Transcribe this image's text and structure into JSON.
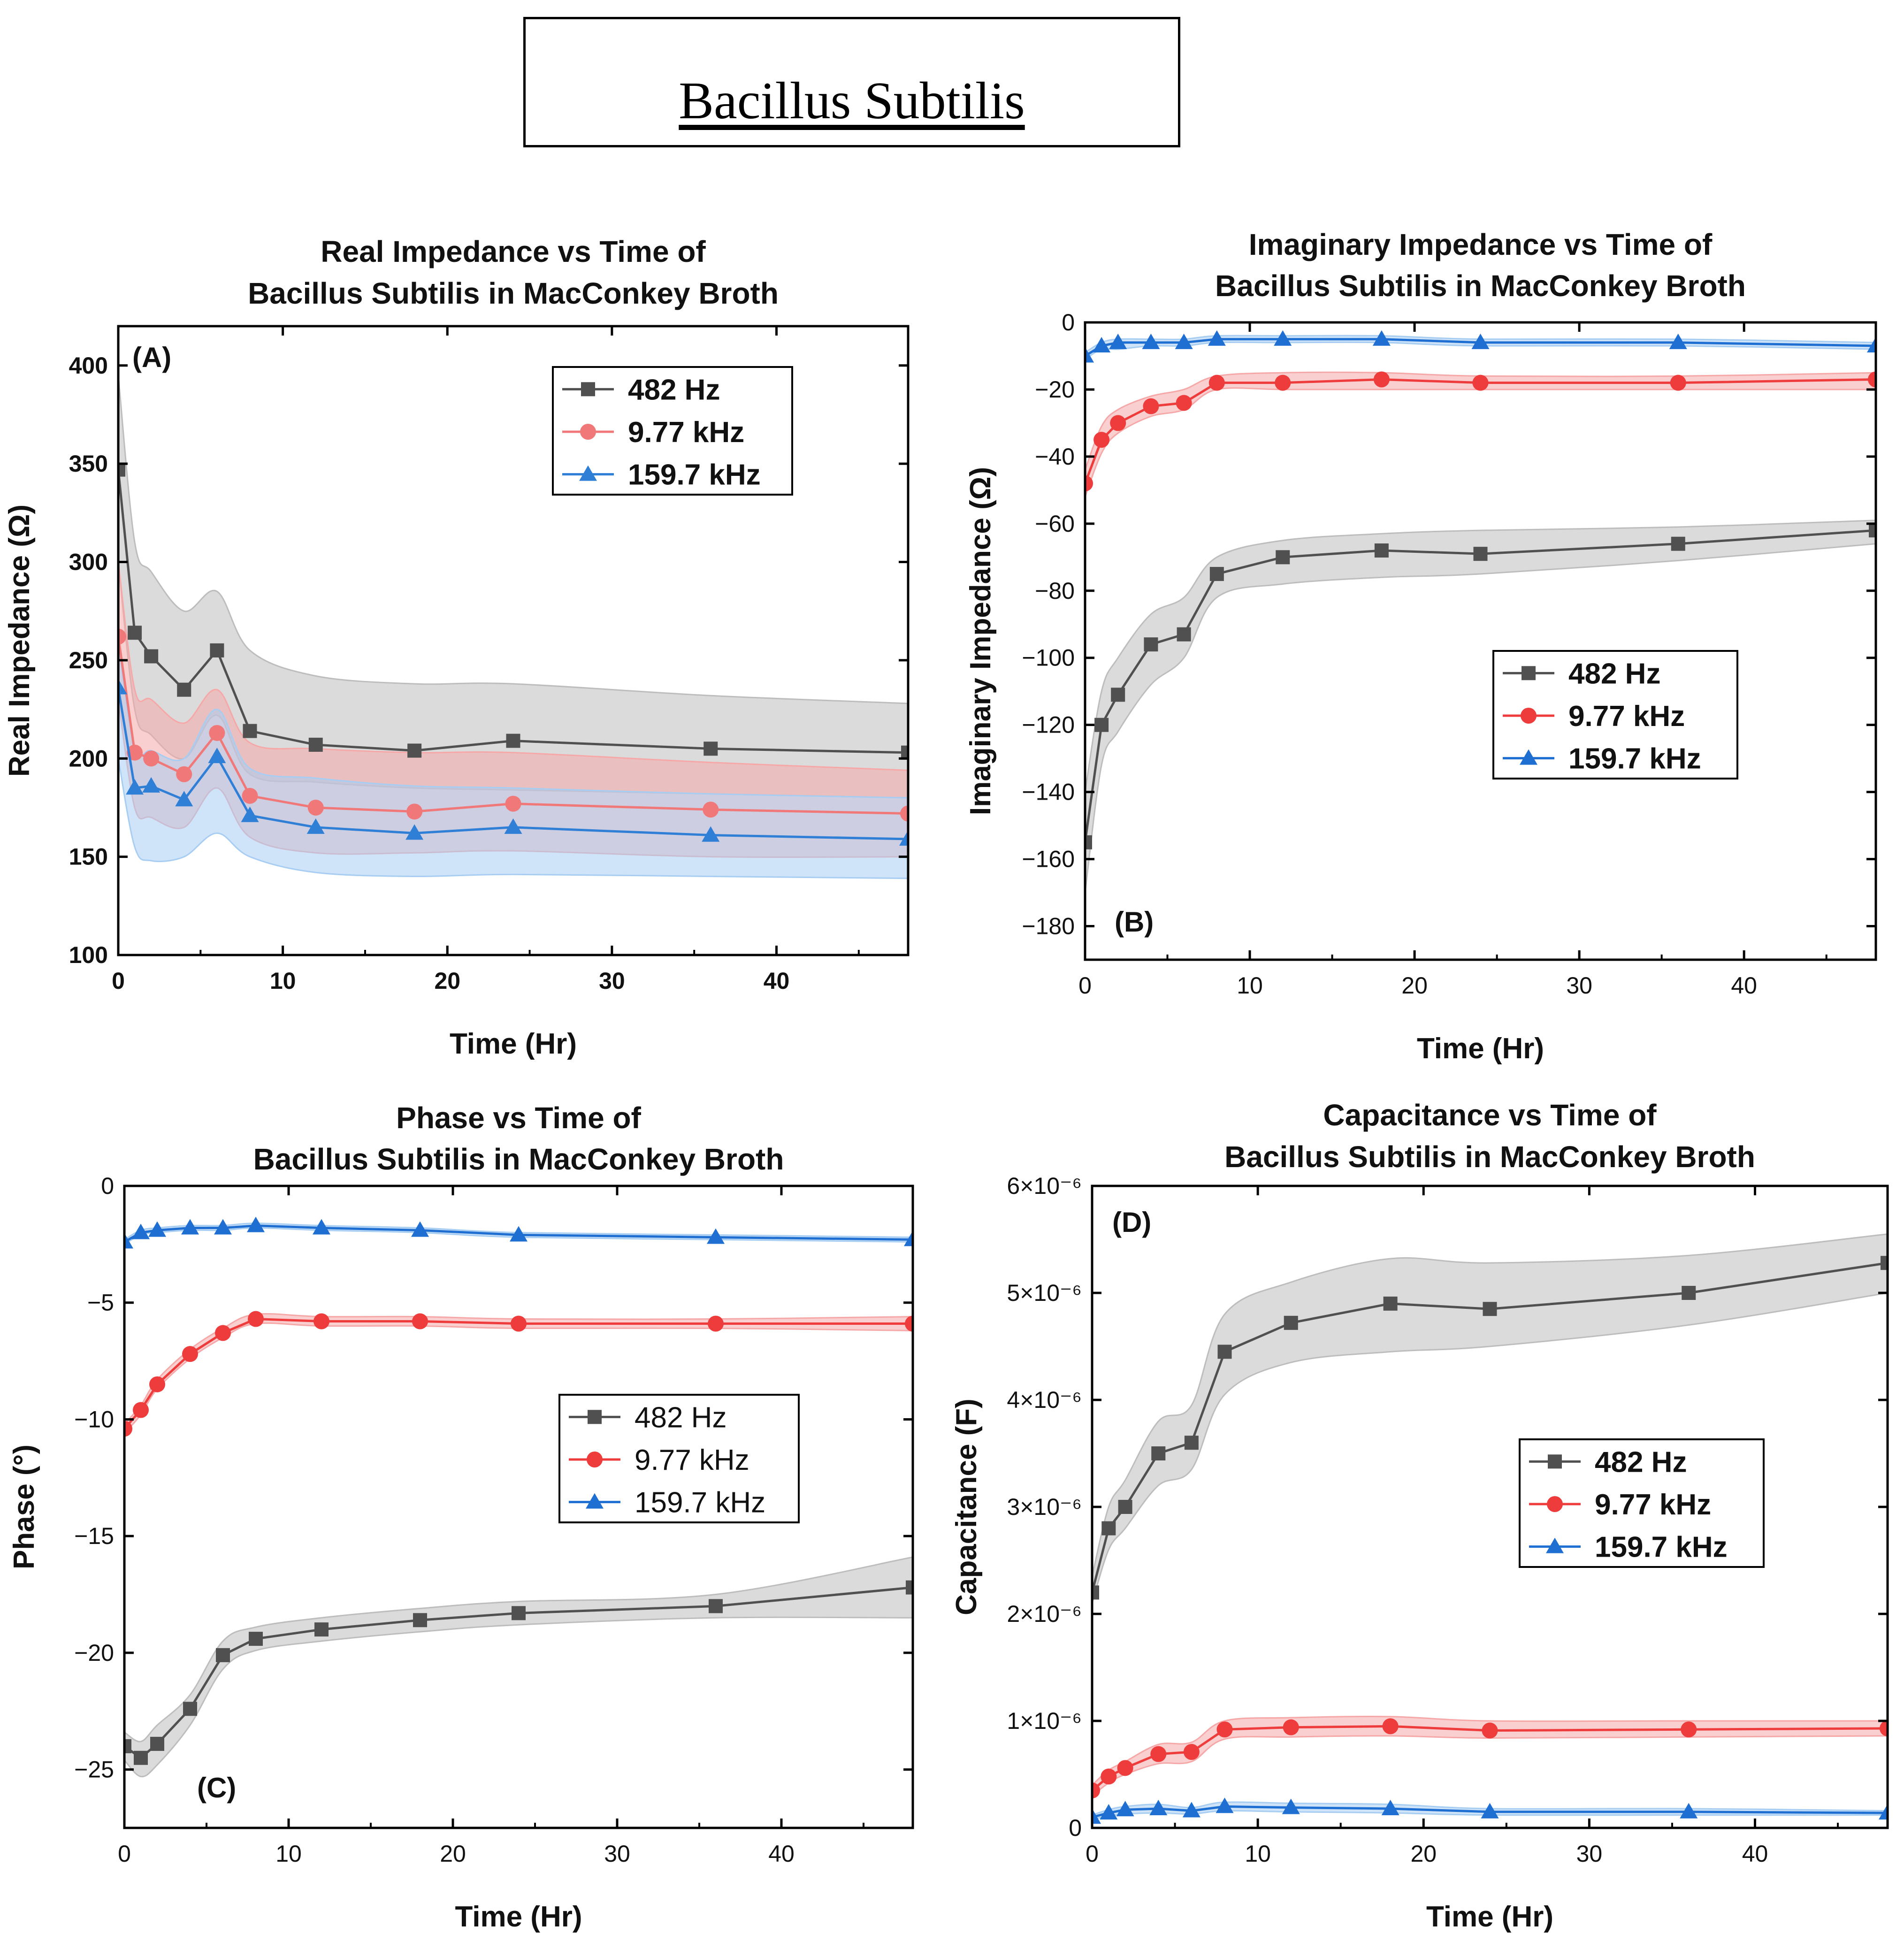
{
  "main_title": "Bacillus Subtilis",
  "chart_data": [
    {
      "id": "A",
      "type": "line",
      "panel_label": "(A)",
      "title_lines": [
        "Real Impedance vs Time of",
        "Bacillus Subtilis in MacConkey Broth"
      ],
      "xlabel": "Time (Hr)",
      "ylabel": "Real Impedance (Ω)",
      "xlim": [
        0,
        48
      ],
      "ylim": [
        100,
        420
      ],
      "xticks": [
        0,
        10,
        20,
        30,
        40
      ],
      "yticks": [
        100,
        150,
        200,
        250,
        300,
        350,
        400
      ],
      "ytick_labels": [
        "100",
        "150",
        "200",
        "250",
        "300",
        "350",
        "400"
      ],
      "legend_position": "top-right",
      "x": [
        0,
        1,
        2,
        4,
        6,
        8,
        12,
        18,
        24,
        36,
        48
      ],
      "series": [
        {
          "name": "482 Hz",
          "marker": "square",
          "color": "#505050",
          "band": "#bdbdbd",
          "values": [
            347,
            264,
            252,
            235,
            255,
            214,
            207,
            204,
            209,
            205,
            203
          ],
          "lower": [
            300,
            225,
            212,
            200,
            222,
            192,
            188,
            185,
            184,
            182,
            180
          ],
          "upper": [
            395,
            310,
            295,
            275,
            285,
            255,
            242,
            238,
            238,
            232,
            228
          ]
        },
        {
          "name": "9.77 kHz",
          "marker": "circle",
          "color": "#f07878",
          "band": "#f6a8a8",
          "values": [
            262,
            203,
            200,
            192,
            213,
            181,
            175,
            173,
            177,
            174,
            172
          ],
          "lower": [
            230,
            175,
            170,
            165,
            185,
            160,
            152,
            152,
            153,
            150,
            150
          ],
          "upper": [
            300,
            235,
            230,
            218,
            235,
            208,
            205,
            203,
            203,
            198,
            194
          ]
        },
        {
          "name": "159.7 kHz",
          "marker": "triangle",
          "color": "#2f7fd6",
          "band": "#a7cdf3",
          "values": [
            236,
            185,
            186,
            179,
            201,
            171,
            165,
            162,
            165,
            161,
            159
          ],
          "lower": [
            200,
            155,
            148,
            150,
            162,
            150,
            142,
            140,
            141,
            140,
            139
          ],
          "upper": [
            260,
            205,
            204,
            200,
            225,
            195,
            190,
            186,
            185,
            182,
            180
          ]
        }
      ]
    },
    {
      "id": "B",
      "type": "line",
      "panel_label": "(B)",
      "title_lines": [
        "Imaginary Impedance vs Time of",
        "Bacillus Subtilis in MacConkey Broth"
      ],
      "xlabel": "Time (Hr)",
      "ylabel": "Imaginary Impedance (Ω)",
      "xlim": [
        0,
        48
      ],
      "ylim": [
        -190,
        0
      ],
      "xticks": [
        0,
        10,
        20,
        30,
        40
      ],
      "yticks": [
        0,
        -20,
        -40,
        -60,
        -80,
        -100,
        -120,
        -140,
        -160,
        -180
      ],
      "ytick_labels": [
        "0",
        "−20",
        "−40",
        "−60",
        "−80",
        "−100",
        "−120",
        "−140",
        "−160",
        "−180"
      ],
      "legend_position": "center-right",
      "x": [
        0,
        1,
        2,
        4,
        6,
        8,
        12,
        18,
        24,
        36,
        48
      ],
      "series": [
        {
          "name": "482 Hz",
          "marker": "square",
          "color": "#505050",
          "band": "#bdbdbd",
          "values": [
            -155,
            -120,
            -111,
            -96,
            -93,
            -75,
            -70,
            -68,
            -69,
            -66,
            -62
          ],
          "lower": [
            -170,
            -132,
            -122,
            -108,
            -100,
            -82,
            -78,
            -76,
            -75,
            -71,
            -66
          ],
          "upper": [
            -140,
            -110,
            -100,
            -87,
            -82,
            -70,
            -65,
            -63,
            -62,
            -61,
            -59
          ]
        },
        {
          "name": "9.77 kHz",
          "marker": "circle",
          "color": "#ee3b3b",
          "band": "#f6a8a8",
          "values": [
            -48,
            -35,
            -30,
            -25,
            -24,
            -18,
            -18,
            -17,
            -18,
            -18,
            -17
          ],
          "lower": [
            -52,
            -39,
            -33,
            -28,
            -26,
            -20,
            -20,
            -20,
            -20,
            -20,
            -20
          ],
          "upper": [
            -44,
            -31,
            -26,
            -22,
            -20,
            -16,
            -15,
            -15,
            -16,
            -16,
            -15
          ]
        },
        {
          "name": "159.7 kHz",
          "marker": "triangle",
          "color": "#1f6fd2",
          "band": "#a7cdf3",
          "values": [
            -10,
            -7,
            -6,
            -6,
            -6,
            -5,
            -5,
            -5,
            -6,
            -6,
            -7
          ],
          "lower": [
            -11,
            -8,
            -8,
            -7,
            -7,
            -6,
            -6,
            -6,
            -7,
            -7,
            -8
          ],
          "upper": [
            -9,
            -6,
            -5,
            -5,
            -5,
            -4,
            -4,
            -4,
            -5,
            -5,
            -6
          ]
        }
      ]
    },
    {
      "id": "C",
      "type": "line",
      "panel_label": "(C)",
      "title_lines": [
        "Phase vs Time of",
        "Bacillus Subtilis in MacConkey Broth"
      ],
      "xlabel": "Time (Hr)",
      "ylabel": "Phase (°)",
      "xlim": [
        0,
        48
      ],
      "ylim": [
        -27.5,
        0
      ],
      "xticks": [
        0,
        10,
        20,
        30,
        40
      ],
      "yticks": [
        0,
        -5,
        -10,
        -15,
        -20,
        -25
      ],
      "ytick_labels": [
        "0",
        "−5",
        "−10",
        "−15",
        "−20",
        "−25"
      ],
      "legend_position": "center-right",
      "x": [
        0,
        1,
        2,
        4,
        6,
        8,
        12,
        18,
        24,
        36,
        48
      ],
      "series": [
        {
          "name": "482 Hz",
          "marker": "square",
          "color": "#505050",
          "band": "#bdbdbd",
          "values": [
            -24.0,
            -24.5,
            -23.9,
            -22.4,
            -20.1,
            -19.4,
            -19.0,
            -18.6,
            -18.3,
            -18.0,
            -17.2
          ],
          "lower": [
            -24.6,
            -25.3,
            -24.8,
            -23.1,
            -20.7,
            -19.9,
            -19.5,
            -19.1,
            -18.8,
            -18.5,
            -18.5
          ],
          "upper": [
            -23.4,
            -23.8,
            -23.1,
            -21.8,
            -19.5,
            -18.9,
            -18.5,
            -18.1,
            -17.8,
            -17.5,
            -15.9
          ]
        },
        {
          "name": "9.77 kHz",
          "marker": "circle",
          "color": "#ee3b3b",
          "band": "#f6a8a8",
          "values": [
            -10.4,
            -9.6,
            -8.5,
            -7.2,
            -6.3,
            -5.7,
            -5.8,
            -5.8,
            -5.9,
            -5.9,
            -5.9
          ],
          "lower": [
            -10.6,
            -9.8,
            -8.7,
            -7.4,
            -6.5,
            -5.9,
            -6.0,
            -6.0,
            -6.1,
            -6.1,
            -6.2
          ],
          "upper": [
            -10.2,
            -9.4,
            -8.3,
            -7.0,
            -6.1,
            -5.5,
            -5.6,
            -5.6,
            -5.7,
            -5.7,
            -5.6
          ]
        },
        {
          "name": "159.7 kHz",
          "marker": "triangle",
          "color": "#1f6fd2",
          "band": "#a7cdf3",
          "values": [
            -2.4,
            -2.0,
            -1.9,
            -1.8,
            -1.8,
            -1.7,
            -1.8,
            -1.9,
            -2.1,
            -2.2,
            -2.3
          ],
          "lower": [
            -2.5,
            -2.1,
            -2.0,
            -1.9,
            -1.9,
            -1.8,
            -1.9,
            -2.0,
            -2.2,
            -2.3,
            -2.4
          ],
          "upper": [
            -2.3,
            -1.9,
            -1.8,
            -1.7,
            -1.7,
            -1.6,
            -1.7,
            -1.8,
            -2.0,
            -2.1,
            -2.2
          ]
        }
      ]
    },
    {
      "id": "D",
      "type": "line",
      "panel_label": "(D)",
      "title_lines": [
        "Capacitance vs Time of",
        "Bacillus Subtilis in MacConkey Broth"
      ],
      "xlabel": "Time (Hr)",
      "ylabel": "Capacitance (F)",
      "xlim": [
        0,
        48
      ],
      "ylim": [
        0,
        6
      ],
      "y_multiplier": "1e-6",
      "xticks": [
        0,
        10,
        20,
        30,
        40
      ],
      "yticks": [
        0,
        1,
        2,
        3,
        4,
        5,
        6
      ],
      "ytick_labels": [
        "0",
        "1×10⁻⁶",
        "2×10⁻⁶",
        "3×10⁻⁶",
        "4×10⁻⁶",
        "5×10⁻⁶",
        "6×10⁻⁶"
      ],
      "legend_position": "center-right",
      "x": [
        0,
        1,
        2,
        4,
        6,
        8,
        12,
        18,
        24,
        36,
        48
      ],
      "series": [
        {
          "name": "482 Hz",
          "marker": "square",
          "color": "#505050",
          "band": "#bdbdbd",
          "values": [
            2.2,
            2.8,
            3.0,
            3.5,
            3.6,
            4.45,
            4.72,
            4.9,
            4.85,
            5.0,
            5.28
          ],
          "lower": [
            2.1,
            2.6,
            2.8,
            3.2,
            3.35,
            4.05,
            4.35,
            4.45,
            4.5,
            4.7,
            5.0
          ],
          "upper": [
            2.35,
            3.0,
            3.25,
            3.8,
            3.95,
            4.8,
            5.1,
            5.32,
            5.28,
            5.35,
            5.55
          ]
        },
        {
          "name": "9.77 kHz",
          "marker": "circle",
          "color": "#ee3b3b",
          "band": "#f6a8a8",
          "values": [
            0.35,
            0.48,
            0.56,
            0.69,
            0.71,
            0.92,
            0.94,
            0.95,
            0.91,
            0.92,
            0.93
          ],
          "lower": [
            0.3,
            0.42,
            0.5,
            0.6,
            0.62,
            0.83,
            0.85,
            0.86,
            0.84,
            0.85,
            0.86
          ],
          "upper": [
            0.4,
            0.54,
            0.62,
            0.78,
            0.8,
            1.0,
            1.03,
            1.04,
            1.0,
            1.0,
            1.0
          ]
        },
        {
          "name": "159.7 kHz",
          "marker": "triangle",
          "color": "#1f6fd2",
          "band": "#a7cdf3",
          "values": [
            0.1,
            0.14,
            0.17,
            0.18,
            0.16,
            0.2,
            0.19,
            0.18,
            0.15,
            0.15,
            0.14
          ],
          "lower": [
            0.08,
            0.11,
            0.13,
            0.14,
            0.13,
            0.16,
            0.15,
            0.14,
            0.12,
            0.12,
            0.12
          ],
          "upper": [
            0.12,
            0.17,
            0.2,
            0.22,
            0.19,
            0.24,
            0.23,
            0.22,
            0.18,
            0.18,
            0.16
          ]
        }
      ]
    }
  ]
}
